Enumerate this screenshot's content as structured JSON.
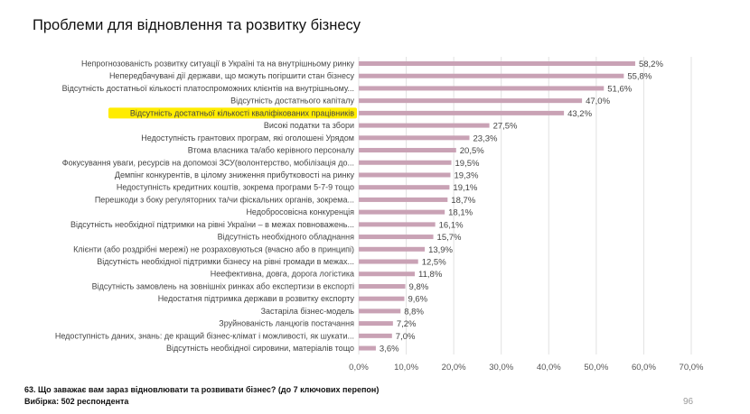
{
  "title": "Проблеми для відновлення та розвитку бізнесу",
  "footer": {
    "question": "63. Що заважає вам зараз відновлювати та розвивати бізнес? (до 7 ключових перепон)",
    "sample": "Вибірка: 502 респондента",
    "page_number": "96"
  },
  "chart_data": {
    "type": "bar",
    "orientation": "horizontal",
    "categories": [
      "Непрогнозованість розвитку ситуації в Україні та на внутрішньому ринку",
      "Непередбачувані дії держави, що можуть погіршити стан бізнесу",
      "Відсутність достатньої кількості платоспроможних клієнтів на внутрішньому...",
      "Відсутність достатнього капіталу",
      "Відсутність достатньої кількості кваліфікованих працівників",
      "Високі податки та збори",
      "Недоступність грантових програм, які оголошені Урядом",
      "Втома власника та/або керівного персоналу",
      "Фокусування уваги, ресурсів на допомозі ЗСУ(волонтерство, мобілізація до...",
      "Демпінг конкурентів, в цілому зниження прибутковості на ринку",
      "Недоступність кредитних коштів, зокрема програми 5-7-9 тощо",
      "Перешкоди з боку регуляторних та/чи фіскальних органів, зокрема...",
      "Недобросовісна конкуренція",
      "Відсутність необхідної підтримки на рівні України – в межах повноважень...",
      "Відсутність необхідного обладнання",
      "Клієнти (або роздрібні мережі) не розраховуються (вчасно або в принципі)",
      "Відсутність необхідної підтримки бізнесу на рівні громади в межах...",
      "Неефективна, довга, дорога логістика",
      "Відсутність замовлень на зовнішніх ринках або експертизи в експорті",
      "Недостатня підтримка держави в розвитку експорту",
      "Застаріла бізнес-модель",
      "Зруйнованість ланцюгів постачання",
      "Недоступність даних, знань: де кращий бізнес-клімат і можливості, як шукати...",
      "Відсутність необхідної сировини, матеріалів тощо"
    ],
    "values": [
      58.2,
      55.8,
      51.6,
      47.0,
      43.2,
      27.5,
      23.3,
      20.5,
      19.5,
      19.3,
      19.1,
      18.7,
      18.1,
      16.1,
      15.7,
      13.9,
      12.5,
      11.8,
      9.8,
      9.6,
      8.8,
      7.2,
      7.0,
      3.6
    ],
    "data_labels": [
      "58,2%",
      "55,8%",
      "51,6%",
      "47,0%",
      "43,2%",
      "27,5%",
      "23,3%",
      "20,5%",
      "19,5%",
      "19,3%",
      "19,1%",
      "18,7%",
      "18,1%",
      "16,1%",
      "15,7%",
      "13,9%",
      "12,5%",
      "11,8%",
      "9,8%",
      "9,6%",
      "8,8%",
      "7,2%",
      "7,0%",
      "3,6%"
    ],
    "highlighted_category_index": 4,
    "highlight_color": "#ffec00",
    "bar_color": "#c9a2b5",
    "xlim": [
      0,
      70
    ],
    "x_ticks": [
      "0,0%",
      "10,0%",
      "20,0%",
      "30,0%",
      "40,0%",
      "50,0%",
      "60,0%",
      "70,0%"
    ],
    "grid": "vertical",
    "legend": "none"
  }
}
